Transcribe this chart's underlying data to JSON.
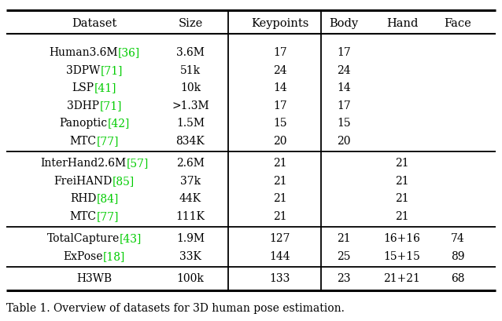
{
  "title": "Table 1. Overview of datasets for 3D human pose estimation.",
  "headers": [
    "Dataset",
    "Size",
    "Keypoints",
    "Body",
    "Hand",
    "Face"
  ],
  "rows": [
    {
      "group": 1,
      "name": "Human3.6M",
      "ref": "[36]",
      "size": "3.6M",
      "kp": "17",
      "body": "17",
      "hand": "",
      "face": ""
    },
    {
      "group": 1,
      "name": "3DPW",
      "ref": "[71]",
      "size": "51k",
      "kp": "24",
      "body": "24",
      "hand": "",
      "face": ""
    },
    {
      "group": 1,
      "name": "LSP",
      "ref": "[41]",
      "size": "10k",
      "kp": "14",
      "body": "14",
      "hand": "",
      "face": ""
    },
    {
      "group": 1,
      "name": "3DHP",
      "ref": "[71]",
      "size": ">1.3M",
      "kp": "17",
      "body": "17",
      "hand": "",
      "face": ""
    },
    {
      "group": 1,
      "name": "Panoptic",
      "ref": "[42]",
      "size": "1.5M",
      "kp": "15",
      "body": "15",
      "hand": "",
      "face": ""
    },
    {
      "group": 1,
      "name": "MTC",
      "ref": "[77]",
      "size": "834K",
      "kp": "20",
      "body": "20",
      "hand": "",
      "face": ""
    },
    {
      "group": 2,
      "name": "InterHand2.6M",
      "ref": "[57]",
      "size": "2.6M",
      "kp": "21",
      "body": "",
      "hand": "21",
      "face": ""
    },
    {
      "group": 2,
      "name": "FreiHAND",
      "ref": "[85]",
      "size": "37k",
      "kp": "21",
      "body": "",
      "hand": "21",
      "face": ""
    },
    {
      "group": 2,
      "name": "RHD",
      "ref": "[84]",
      "size": "44K",
      "kp": "21",
      "body": "",
      "hand": "21",
      "face": ""
    },
    {
      "group": 2,
      "name": "MTC",
      "ref": "[77]",
      "size": "111K",
      "kp": "21",
      "body": "",
      "hand": "21",
      "face": ""
    },
    {
      "group": 3,
      "name": "TotalCapture",
      "ref": "[43]",
      "size": "1.9M",
      "kp": "127",
      "body": "21",
      "hand": "16+16",
      "face": "74"
    },
    {
      "group": 3,
      "name": "ExPose",
      "ref": "[18]",
      "size": "33K",
      "kp": "144",
      "body": "25",
      "hand": "15+15",
      "face": "89"
    },
    {
      "group": 4,
      "name": "H3WB",
      "ref": "",
      "size": "100k",
      "kp": "133",
      "body": "23",
      "hand": "21+21",
      "face": "68"
    }
  ],
  "bg_color": "#ffffff",
  "text_color": "#000000",
  "green_color": "#00cc00",
  "font_size": 10.0,
  "header_font_size": 10.5,
  "caption_font_size": 10.0
}
